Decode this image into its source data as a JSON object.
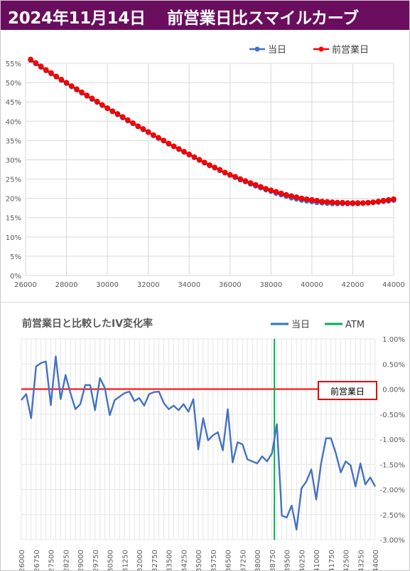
{
  "header": {
    "title": "2024年11月14日　 前営業日比スマイルカーブ"
  },
  "colors": {
    "header_bg": "#6b0d5e",
    "today": "#4472c4",
    "prev_day": "#ff0000",
    "atm": "#00b050",
    "zero_line": "#ff0000",
    "grid": "#d9d9d9"
  },
  "chart_data": [
    {
      "type": "line",
      "title": "",
      "xlabel": "",
      "ylabel": "",
      "xlim": [
        26000,
        44000
      ],
      "ylim": [
        0,
        0.55
      ],
      "x_ticks": [
        "26000",
        "28000",
        "30000",
        "32000",
        "34000",
        "36000",
        "38000",
        "40000",
        "42000",
        "44000"
      ],
      "y_ticks": [
        "0%",
        "5%",
        "10%",
        "15%",
        "20%",
        "25%",
        "30%",
        "35%",
        "40%",
        "45%",
        "50%",
        "55%"
      ],
      "legend": [
        "当日",
        "前営業日"
      ],
      "legend_position": "top-right",
      "grid": true,
      "x": [
        26250,
        26500,
        26750,
        27000,
        27250,
        27500,
        27750,
        28000,
        28250,
        28500,
        28750,
        29000,
        29250,
        29500,
        29750,
        30000,
        30250,
        30500,
        30750,
        31000,
        31250,
        31500,
        31750,
        32000,
        32250,
        32500,
        32750,
        33000,
        33250,
        33500,
        33750,
        34000,
        34250,
        34500,
        34750,
        35000,
        35250,
        35500,
        35750,
        36000,
        36250,
        36500,
        36750,
        37000,
        37250,
        37500,
        37750,
        38000,
        38250,
        38500,
        38750,
        39000,
        39250,
        39500,
        39750,
        40000,
        40250,
        40500,
        40750,
        41000,
        41250,
        41500,
        41750,
        42000,
        42250,
        42500,
        42750,
        43000,
        43250,
        43500,
        43750,
        44000
      ],
      "series": [
        {
          "name": "当日",
          "values": [
            0.558,
            0.549,
            0.54,
            0.531,
            0.523,
            0.515,
            0.506,
            0.498,
            0.49,
            0.481,
            0.473,
            0.465,
            0.457,
            0.449,
            0.441,
            0.433,
            0.425,
            0.417,
            0.409,
            0.401,
            0.394,
            0.386,
            0.378,
            0.371,
            0.363,
            0.356,
            0.349,
            0.341,
            0.334,
            0.327,
            0.32,
            0.313,
            0.306,
            0.299,
            0.292,
            0.285,
            0.279,
            0.272,
            0.266,
            0.26,
            0.254,
            0.248,
            0.243,
            0.237,
            0.232,
            0.227,
            0.222,
            0.218,
            0.213,
            0.209,
            0.205,
            0.201,
            0.198,
            0.195,
            0.193,
            0.191,
            0.189,
            0.188,
            0.187,
            0.186,
            0.186,
            0.186,
            0.186,
            0.186,
            0.186,
            0.187,
            0.188,
            0.189,
            0.19,
            0.192,
            0.193,
            0.195
          ]
        },
        {
          "name": "前営業日",
          "values": [
            0.56,
            0.551,
            0.542,
            0.533,
            0.525,
            0.516,
            0.508,
            0.5,
            0.491,
            0.483,
            0.475,
            0.467,
            0.459,
            0.451,
            0.442,
            0.434,
            0.426,
            0.419,
            0.411,
            0.403,
            0.395,
            0.387,
            0.38,
            0.372,
            0.364,
            0.357,
            0.35,
            0.342,
            0.335,
            0.328,
            0.321,
            0.314,
            0.307,
            0.3,
            0.293,
            0.286,
            0.28,
            0.274,
            0.267,
            0.261,
            0.256,
            0.25,
            0.245,
            0.24,
            0.235,
            0.23,
            0.225,
            0.221,
            0.217,
            0.213,
            0.209,
            0.206,
            0.203,
            0.2,
            0.198,
            0.196,
            0.194,
            0.192,
            0.191,
            0.19,
            0.189,
            0.189,
            0.188,
            0.188,
            0.188,
            0.188,
            0.189,
            0.19,
            0.192,
            0.194,
            0.196,
            0.198
          ]
        }
      ]
    },
    {
      "type": "line",
      "title": "前営業日と比較したIV変化率",
      "xlabel": "",
      "ylabel": "",
      "ylim": [
        -0.03,
        0.01
      ],
      "x_ticks": [
        "26000",
        "26500",
        "27000",
        "27500",
        "28000",
        "28500",
        "29000",
        "29500",
        "30000",
        "30500",
        "31000",
        "31500",
        "32000",
        "32500",
        "33000",
        "33500",
        "34000",
        "34500",
        "35000",
        "35500",
        "36000",
        "36500",
        "37000",
        "37500",
        "38000",
        "38500",
        "39000",
        "39500",
        "40000",
        "40500",
        "41000",
        "41500",
        "42000",
        "42500",
        "43000",
        "43500",
        "44000"
      ],
      "x_tick_labels_shown": [
        "26000",
        "26750",
        "27500",
        "28250",
        "29000",
        "29750",
        "30500",
        "31250",
        "32000",
        "32750",
        "33500",
        "34250",
        "35000",
        "35750",
        "36500",
        "37250",
        "38000",
        "38750",
        "39500",
        "40250",
        "41000",
        "41750",
        "42500",
        "43250",
        "44000"
      ],
      "y_ticks": [
        "1.00%",
        "0.50%",
        "0.00%",
        "-0.50%",
        "-1.00%",
        "-1.50%",
        "-2.00%",
        "-2.50%",
        "-3.00%"
      ],
      "legend": [
        "当日",
        "ATM"
      ],
      "legend_position": "top-right",
      "annotation": "前営業日",
      "atm_strike": 38875,
      "grid": true,
      "x_start": 26000,
      "x_step": 250,
      "series": [
        {
          "name": "当日",
          "values": [
            -0.0022,
            -0.001,
            -0.0058,
            0.0045,
            0.0052,
            0.0055,
            -0.0032,
            0.0065,
            -0.002,
            0.0028,
            -0.0008,
            -0.004,
            -0.003,
            0.0008,
            0.0008,
            -0.0042,
            0.0022,
            0.0002,
            -0.0052,
            -0.0022,
            -0.0015,
            -0.0008,
            -0.0005,
            -0.0024,
            -0.0018,
            -0.0033,
            -0.001,
            -0.0006,
            -0.0005,
            -0.0028,
            -0.004,
            -0.0033,
            -0.0042,
            -0.003,
            -0.0045,
            -0.002,
            -0.012,
            -0.0058,
            -0.0102,
            -0.0092,
            -0.0086,
            -0.0122,
            -0.004,
            -0.0146,
            -0.0106,
            -0.011,
            -0.014,
            -0.0144,
            -0.0148,
            -0.0134,
            -0.0144,
            -0.0128,
            -0.007,
            -0.0252,
            -0.0256,
            -0.0232,
            -0.028,
            -0.0198,
            -0.0184,
            -0.016,
            -0.022,
            -0.0148,
            -0.0098,
            -0.0098,
            -0.0128,
            -0.0166,
            -0.0144,
            -0.0152,
            -0.0194,
            -0.0148,
            -0.019,
            -0.0176,
            -0.0194
          ]
        }
      ]
    }
  ]
}
